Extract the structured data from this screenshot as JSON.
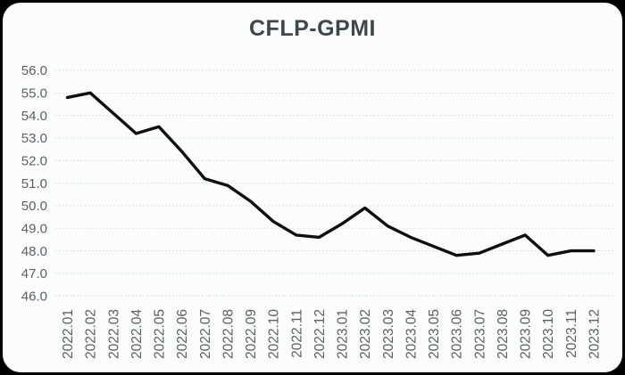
{
  "window": {
    "outer_background": "#000000",
    "card_background": "#fcfcfc"
  },
  "chart_data": {
    "type": "line",
    "title": "CFLP-GPMI",
    "categories": [
      "2022.01",
      "2022.02",
      "2022.03",
      "2022.04",
      "2022.05",
      "2022.06",
      "2022.07",
      "2022.08",
      "2022.09",
      "2022.10",
      "2022.11",
      "2022.12",
      "2023.01",
      "2023.02",
      "2023.03",
      "2023.04",
      "2023.05",
      "2023.06",
      "2023.07",
      "2023.08",
      "2023.09",
      "2023.10",
      "2023.11",
      "2023.12"
    ],
    "values": [
      54.8,
      55.0,
      54.1,
      53.2,
      53.5,
      52.4,
      51.2,
      50.9,
      50.2,
      49.3,
      48.7,
      48.6,
      49.2,
      49.9,
      49.1,
      48.6,
      48.2,
      47.8,
      47.9,
      48.3,
      48.7,
      47.8,
      48.0,
      48.0
    ],
    "series_name": "CFLP-GPMI",
    "ylim": [
      46.0,
      56.0
    ],
    "ytick_labels": [
      "56.0",
      "55.0",
      "54.0",
      "53.0",
      "52.0",
      "51.0",
      "50.0",
      "49.0",
      "48.0",
      "47.0",
      "46.0"
    ],
    "xlabel": "",
    "ylabel": "",
    "legend": "none",
    "grid": "horizontal-dotted",
    "x_label_rotation": -90,
    "line_color": "#0f0f0f",
    "grid_color": "#c9dcdc",
    "tick_label_color": "#596066",
    "title_color": "#3e474b"
  }
}
